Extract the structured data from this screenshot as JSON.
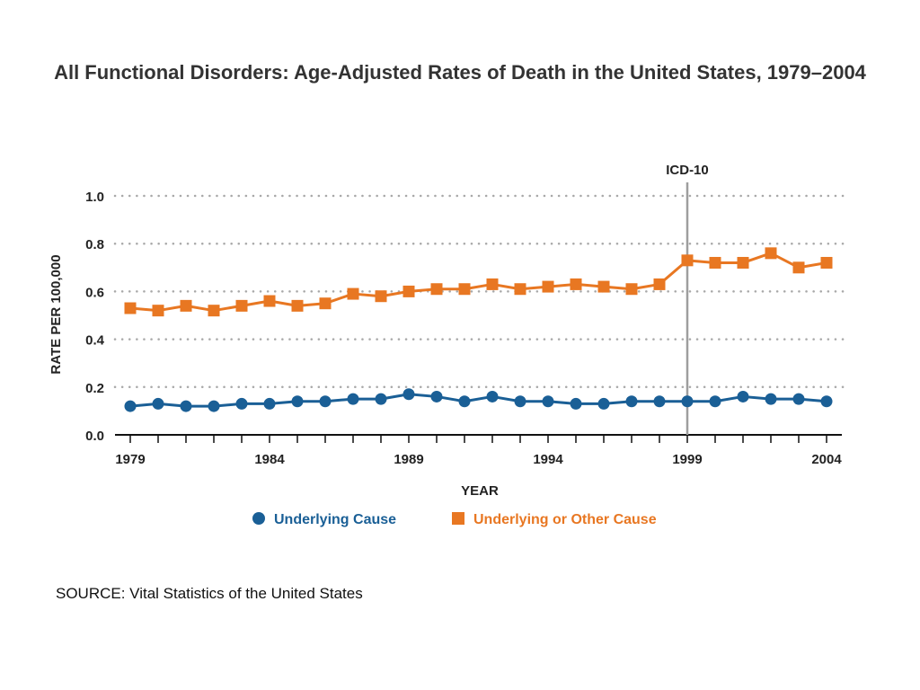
{
  "title": "All Functional Disorders:  Age-Adjusted Rates of Death in the United States, 1979–2004",
  "source": "SOURCE:  Vital Statistics of the United States",
  "chart_data": {
    "type": "line",
    "xlabel": "YEAR",
    "ylabel": "RATE PER 100,000",
    "xlim": [
      1979,
      2004
    ],
    "ylim": [
      0,
      1.0
    ],
    "xticks": [
      1979,
      1984,
      1989,
      1994,
      1999,
      2004
    ],
    "yticks": [
      "0.0",
      "0.2",
      "0.4",
      "0.6",
      "0.8",
      "1.0"
    ],
    "grid": true,
    "legend_position": "bottom",
    "annotation": {
      "label": "ICD-10",
      "x": 1999
    },
    "x": [
      1979,
      1980,
      1981,
      1982,
      1983,
      1984,
      1985,
      1986,
      1987,
      1988,
      1989,
      1990,
      1991,
      1992,
      1993,
      1994,
      1995,
      1996,
      1997,
      1998,
      1999,
      2000,
      2001,
      2002,
      2003,
      2004
    ],
    "series": [
      {
        "name": "Underlying Cause",
        "color": "#1a5f96",
        "marker": "circle",
        "values": [
          0.12,
          0.13,
          0.12,
          0.12,
          0.13,
          0.13,
          0.14,
          0.14,
          0.15,
          0.15,
          0.17,
          0.16,
          0.14,
          0.16,
          0.14,
          0.14,
          0.13,
          0.13,
          0.14,
          0.14,
          0.14,
          0.14,
          0.16,
          0.15,
          0.15,
          0.14
        ]
      },
      {
        "name": "Underlying or Other Cause",
        "color": "#e87722",
        "marker": "square",
        "values": [
          0.53,
          0.52,
          0.54,
          0.52,
          0.54,
          0.56,
          0.54,
          0.55,
          0.59,
          0.58,
          0.6,
          0.61,
          0.61,
          0.63,
          0.61,
          0.62,
          0.63,
          0.62,
          0.61,
          0.63,
          0.73,
          0.72,
          0.72,
          0.76,
          0.7,
          0.72
        ]
      }
    ]
  }
}
